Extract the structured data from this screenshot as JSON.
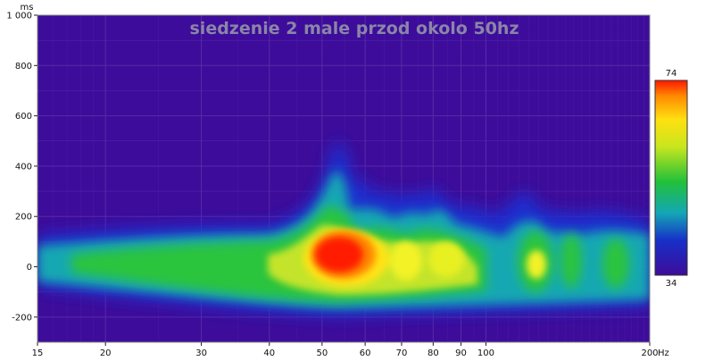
{
  "chart_data": {
    "type": "heatmap",
    "title": "siedzenie 2 male przod okolo 50hz",
    "x_unit": "Hz",
    "y_unit": "ms",
    "x_scale": "log",
    "xlim": [
      15,
      200
    ],
    "ylim": [
      -300,
      1000
    ],
    "x_ticks": [
      15,
      20,
      30,
      40,
      50,
      60,
      70,
      80,
      90,
      100,
      200
    ],
    "y_ticks": [
      -200,
      0,
      200,
      400,
      600,
      800,
      1000
    ],
    "y_tick_labels": [
      "-200",
      "0",
      "200",
      "400",
      "600",
      "800",
      "1 000"
    ],
    "colorbar": {
      "min": 34,
      "max": 74
    },
    "grid": true,
    "colors": {
      "background": "#3d0c9a",
      "grid": "#5a2aa8",
      "title": "#8a86a8"
    },
    "peaks": [
      {
        "freq": 54,
        "time_ms": 40,
        "level": 74
      },
      {
        "freq": 60,
        "time_ms": 10,
        "level": 70
      },
      {
        "freq": 70,
        "time_ms": 0,
        "level": 64
      },
      {
        "freq": 80,
        "time_ms": 30,
        "level": 62
      },
      {
        "freq": 30,
        "time_ms": 0,
        "level": 54
      },
      {
        "freq": 20,
        "time_ms": 0,
        "level": 48
      },
      {
        "freq": 128,
        "time_ms": 0,
        "level": 64
      },
      {
        "freq": 150,
        "time_ms": 0,
        "level": 60
      },
      {
        "freq": 180,
        "time_ms": 0,
        "level": 58
      }
    ]
  }
}
